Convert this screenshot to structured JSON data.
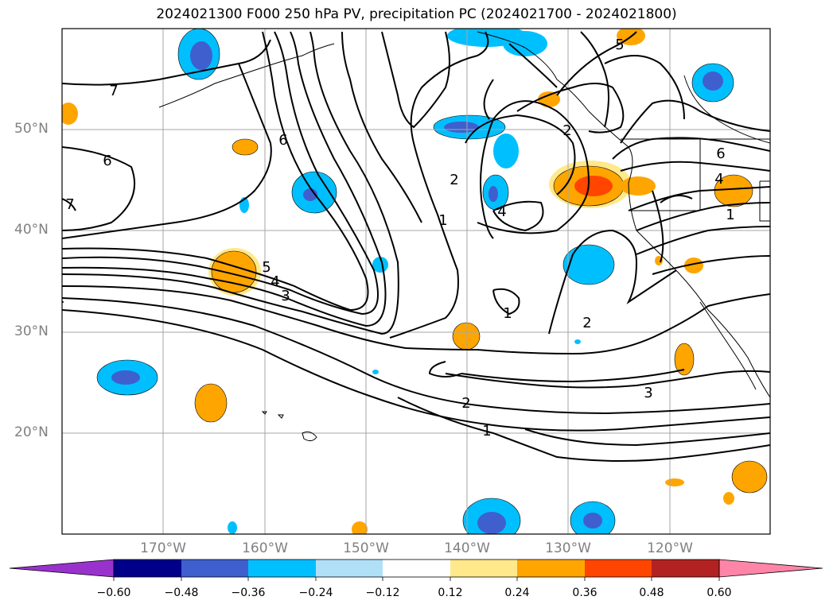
{
  "title": "2024021300 F000 250 hPa PV, precipitation PC (2024021700 - 2024021800)",
  "lat_labels": [
    "50°N",
    "40°N",
    "30°N",
    "20°N"
  ],
  "lon_labels": [
    "170°W",
    "160°W",
    "150°W",
    "140°W",
    "130°W",
    "120°W"
  ],
  "contour_labels": [
    "7",
    "6",
    "7",
    "5",
    "4",
    "3",
    "2",
    "1",
    "1",
    "2",
    "3",
    "2",
    "1",
    "4",
    "2",
    "6",
    "4",
    "1",
    "5",
    "6"
  ],
  "colorbar": {
    "ticks": [
      "−0.60",
      "−0.48",
      "−0.36",
      "−0.24",
      "−0.12",
      "0.12",
      "0.24",
      "0.36",
      "0.48",
      "0.60"
    ],
    "colors": [
      "#9932cc",
      "#00008b",
      "#3f5fcf",
      "#00bfff",
      "#b0e0f8",
      "#ffffff",
      "#ffe98a",
      "#ffa500",
      "#ff4500",
      "#b22222",
      "#ff85a8"
    ]
  }
}
